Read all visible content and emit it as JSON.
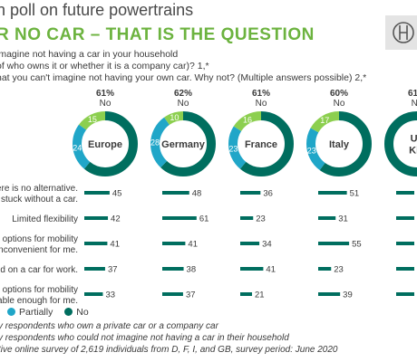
{
  "header": {
    "title": "n poll on future powertrains",
    "subtitle": "R NO CAR – THAT IS THE QUESTION",
    "question_lines": [
      "imagine not having a car in your household",
      "of who owns it or whether it is a company car)? 1,*",
      "hat you can't imagine not having your own car. Why not? (Multiple answers possible) 2,*"
    ]
  },
  "logo": {
    "icon": "bosch-armature-icon"
  },
  "legend": {
    "partially": "Partially",
    "no": "No"
  },
  "footnotes": [
    "y respondents who own a private car or a company car",
    "y respondents who could not imagine not having a car in their household",
    "tive online survey of 2,619 individuals from D, F, I, and GB, survey period: June 2020"
  ],
  "colors": {
    "no": "#006e5f",
    "partially": "#20a6c8",
    "yes": "#8ccf4f",
    "title_green": "#6cb33f",
    "bar": "#006e5f"
  },
  "chart_data": {
    "type": "bar",
    "categories": [
      "here is no alternative. \ne stuck without a car.",
      "Limited flexibility",
      "e options for mobility \ne inconvenient for me.",
      "end on a car for work.",
      "e options for mobility \nliable  enough for me."
    ],
    "series": [
      {
        "name": "Europe",
        "values": [
          45,
          42,
          41,
          37,
          33
        ]
      },
      {
        "name": "Germany",
        "values": [
          48,
          61,
          41,
          38,
          37
        ]
      },
      {
        "name": "France",
        "values": [
          36,
          23,
          34,
          41,
          21
        ]
      },
      {
        "name": "Italy",
        "values": [
          51,
          31,
          55,
          23,
          39
        ]
      },
      {
        "name": "Un Kin",
        "values": [
          null,
          null,
          null,
          null,
          null
        ]
      }
    ],
    "donuts": [
      {
        "name": "Europe",
        "no": 61,
        "partially": 24,
        "yes": 15,
        "label_no": "61%",
        "sub": "No"
      },
      {
        "name": "Germany",
        "no": 62,
        "partially": 28,
        "yes": 10,
        "label_no": "62%",
        "sub": "No"
      },
      {
        "name": "France",
        "no": 61,
        "partially": 23,
        "yes": 16,
        "label_no": "61%",
        "sub": "No"
      },
      {
        "name": "Italy",
        "no": 60,
        "partially": 23,
        "yes": 17,
        "label_no": "60%",
        "sub": "No"
      },
      {
        "name": "Un\nKin",
        "no": 61,
        "partially": null,
        "yes": null,
        "label_no": "61%",
        "sub": "No"
      }
    ]
  }
}
